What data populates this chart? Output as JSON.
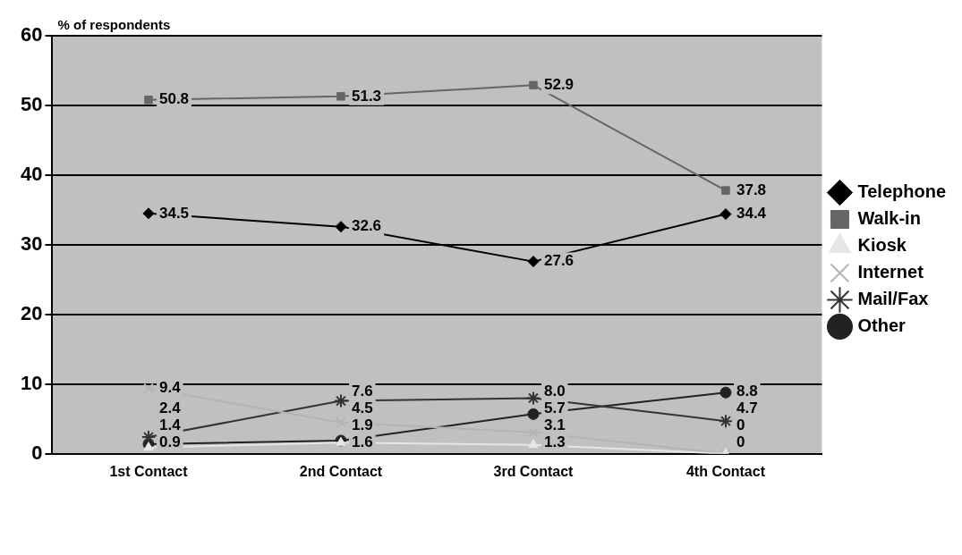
{
  "chart_data": {
    "type": "line",
    "ylabel": "% of respondents",
    "categories": [
      "1st Contact",
      "2nd Contact",
      "3rd Contact",
      "4th Contact"
    ],
    "series": [
      {
        "name": "Telephone",
        "color": "#000000",
        "marker": "diamond",
        "values": [
          34.5,
          32.6,
          27.6,
          34.4
        ],
        "value_labels": [
          "34.5",
          "32.6",
          "27.6",
          "34.4"
        ]
      },
      {
        "name": "Walk-in",
        "color": "#666666",
        "marker": "square",
        "values": [
          50.8,
          51.3,
          52.9,
          37.8
        ],
        "value_labels": [
          "50.8",
          "51.3",
          "52.9",
          "37.8"
        ]
      },
      {
        "name": "Kiosk",
        "color": "#e6e6e6",
        "marker": "triangle",
        "values": [
          0.9,
          1.6,
          1.3,
          0
        ],
        "value_labels": [
          "0.9",
          "1.6",
          "1.3",
          "0"
        ]
      },
      {
        "name": "Internet",
        "color": "#b3b3b3",
        "marker": "cross",
        "values": [
          9.4,
          4.5,
          3.1,
          0
        ],
        "value_labels": [
          "9.4",
          "4.5",
          "3.1",
          "0"
        ]
      },
      {
        "name": "Mail/Fax",
        "color": "#333333",
        "marker": "cross",
        "values": [
          2.4,
          7.6,
          8.0,
          4.7
        ],
        "value_labels": [
          "2.4",
          "7.6",
          "8.0",
          "4.7"
        ]
      },
      {
        "name": "Other",
        "color": "#222222",
        "marker": "circle",
        "values": [
          1.4,
          1.9,
          5.7,
          8.8
        ],
        "value_labels": [
          "1.4",
          "1.9",
          "5.7",
          "8.8"
        ]
      }
    ],
    "ylim": [
      0,
      60
    ],
    "yticks": [
      0,
      10,
      20,
      30,
      40,
      50,
      60
    ],
    "grid": "y",
    "legend": "right",
    "line_style": "solid"
  }
}
